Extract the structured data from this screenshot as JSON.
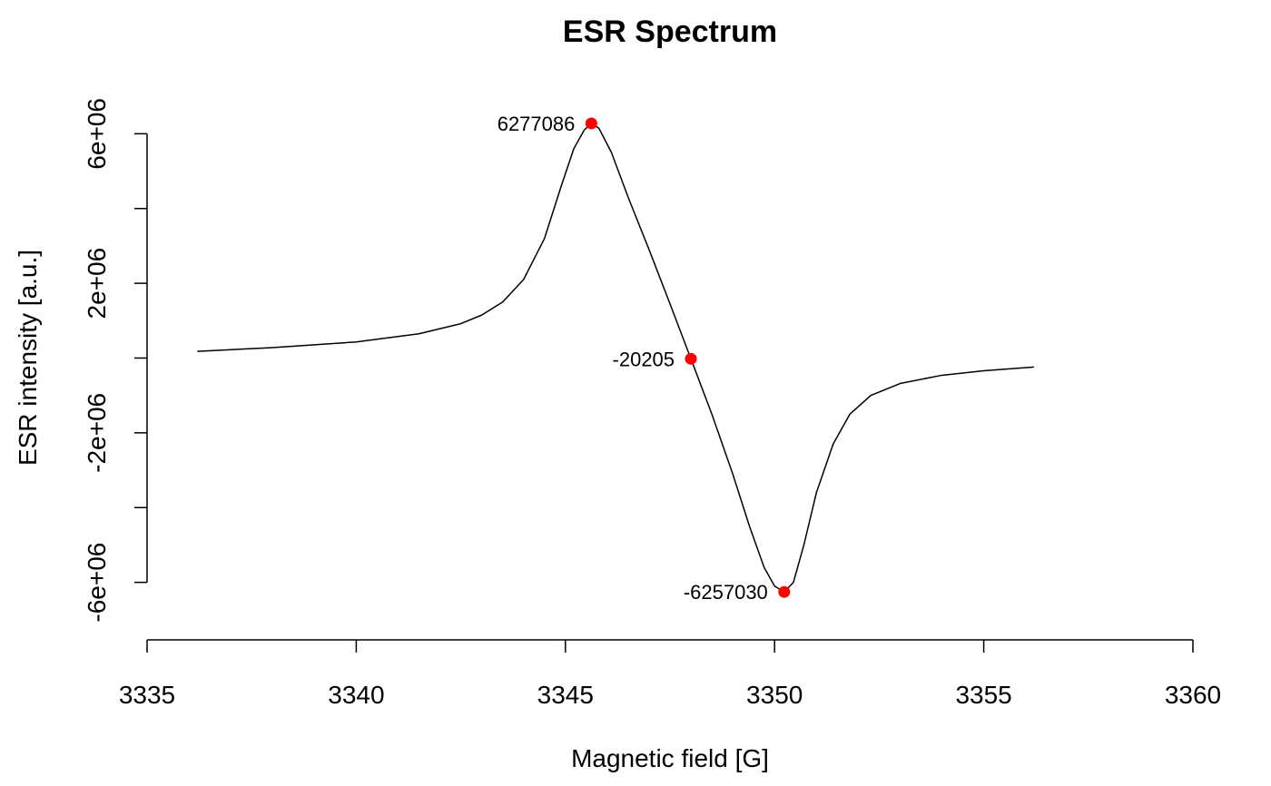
{
  "chart_data": {
    "type": "line",
    "title": "ESR Spectrum",
    "xlabel": "Magnetic field [G]",
    "ylabel": "ESR intensity [a.u.]",
    "xlim": [
      3335,
      3360
    ],
    "ylim": [
      -8000000,
      8000000
    ],
    "x_ticks": [
      3335,
      3340,
      3345,
      3350,
      3355,
      3360
    ],
    "x_tick_labels": [
      "3335",
      "3340",
      "3345",
      "3350",
      "3355",
      "3360"
    ],
    "y_ticks": [
      -6000000,
      -4000000,
      -2000000,
      0,
      2000000,
      4000000,
      6000000
    ],
    "y_tick_labels": [
      "-6e+06",
      "",
      "-2e+06",
      "",
      "2e+06",
      "",
      "6e+06"
    ],
    "grid": false,
    "series": [
      {
        "color": "#000000",
        "x": [
          3336.2,
          3338.0,
          3340.0,
          3341.5,
          3342.5,
          3343.0,
          3343.5,
          3344.0,
          3344.5,
          3344.9,
          3345.2,
          3345.45,
          3345.62,
          3345.8,
          3346.1,
          3346.5,
          3347.0,
          3347.5,
          3348.0,
          3348.5,
          3349.0,
          3349.4,
          3349.75,
          3350.0,
          3350.23,
          3350.45,
          3350.7,
          3351.0,
          3351.4,
          3351.8,
          3352.3,
          3353.0,
          3354.0,
          3355.0,
          3356.2
        ],
        "y": [
          180000,
          280000,
          430000,
          650000,
          920000,
          1150000,
          1500000,
          2100000,
          3200000,
          4600000,
          5600000,
          6100000,
          6277086,
          6150000,
          5500000,
          4300000,
          2900000,
          1450000,
          -20205,
          -1500000,
          -3100000,
          -4500000,
          -5600000,
          -6100000,
          -6257030,
          -6000000,
          -5000000,
          -3600000,
          -2300000,
          -1500000,
          -1000000,
          -680000,
          -460000,
          -340000,
          -240000
        ]
      }
    ],
    "highlight_points": [
      {
        "x": 3345.62,
        "y": 6277086,
        "label": "6277086",
        "label_side": "left"
      },
      {
        "x": 3348.0,
        "y": -20205,
        "label": "-20205",
        "label_side": "left"
      },
      {
        "x": 3350.23,
        "y": -6257030,
        "label": "-6257030",
        "label_side": "left"
      }
    ],
    "highlight_color": "#ff0000"
  }
}
